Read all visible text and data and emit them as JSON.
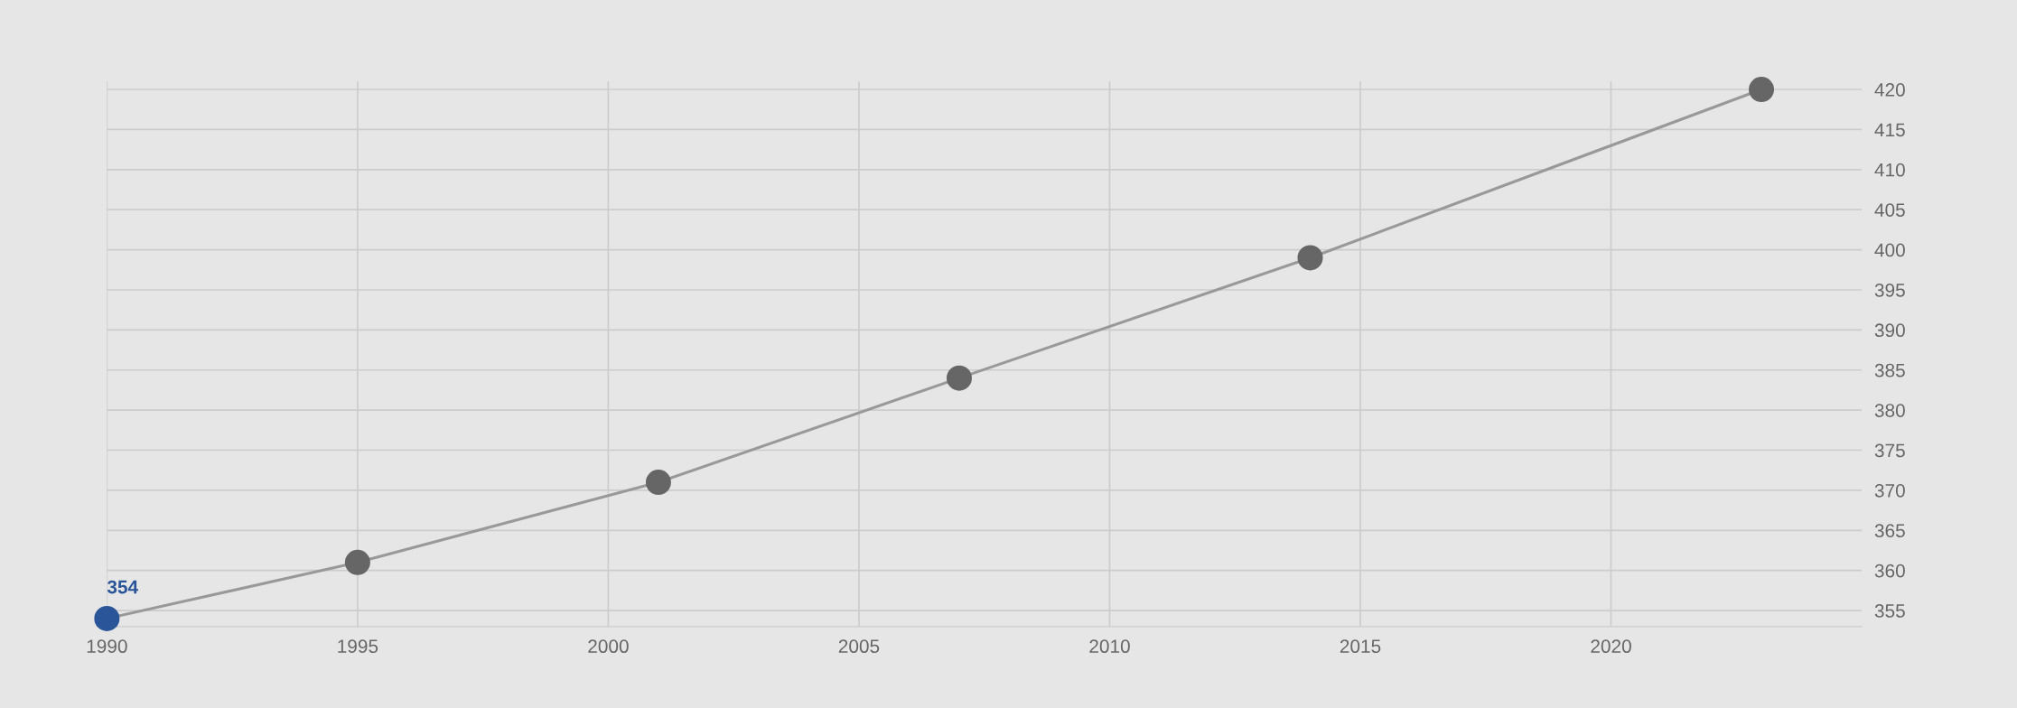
{
  "chart_data": {
    "type": "line",
    "x": [
      1990,
      1995,
      2001,
      2007,
      2014,
      2023
    ],
    "series": [
      {
        "color": "#999999",
        "colors": [
          "#2a5699",
          "#666666",
          "#666666",
          "#666666",
          "#666666",
          "#666666"
        ],
        "values": [
          354,
          361,
          371,
          384,
          399,
          420
        ],
        "value_labels": [
          "354",
          null,
          null,
          null,
          null,
          null
        ]
      }
    ],
    "xlim": [
      1990,
      2025
    ],
    "xticks": [
      1990,
      1995,
      2000,
      2005,
      2010,
      2015,
      2020
    ],
    "ylim": [
      353,
      421
    ],
    "yticks": [
      355,
      360,
      365,
      370,
      375,
      380,
      385,
      390,
      395,
      400,
      405,
      410,
      415,
      420
    ],
    "grid": true,
    "marker": "circle",
    "line_style": "solid"
  }
}
